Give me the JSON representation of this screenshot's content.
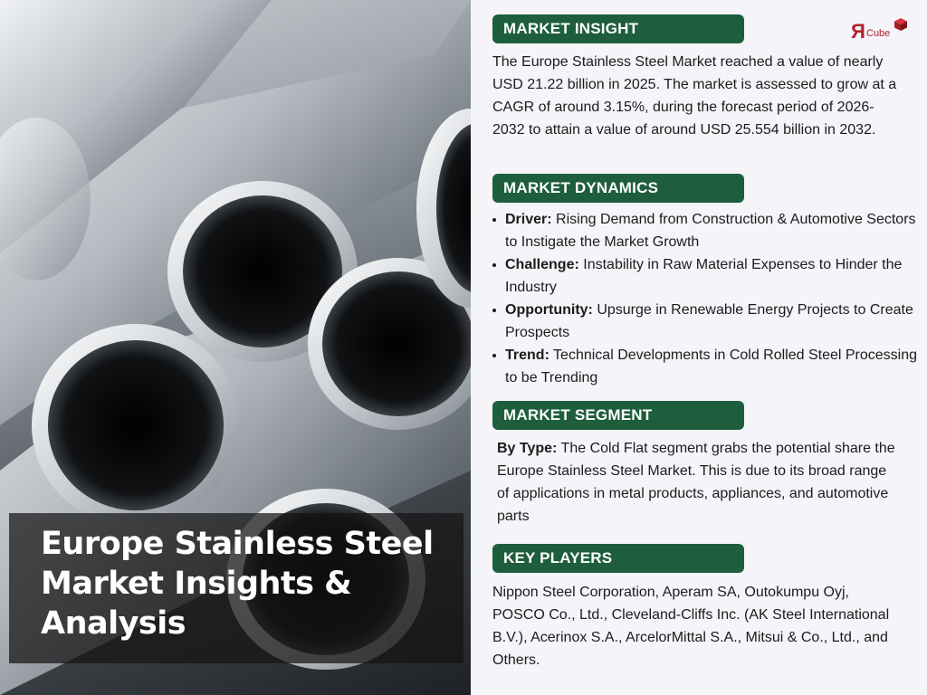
{
  "title": "Europe Stainless Steel Market Insights & Analysis",
  "logo": {
    "mark": "R",
    "text": "Cube",
    "icon": "cube-icon",
    "color": "#b3202a"
  },
  "accent_color": "#1e5e3d",
  "sections": {
    "insight": {
      "header": "MARKET INSIGHT",
      "text": "The Europe Stainless Steel Market reached a value of nearly USD 21.22 billion in 2025. The market is assessed to grow at a CAGR of around 3.15%, during the forecast period of 2026-2032 to attain a value of around USD 25.554 billion in 2032."
    },
    "dynamics": {
      "header": "MARKET DYNAMICS",
      "items": [
        {
          "label": "Driver:",
          "text": "Rising Demand from Construction & Automotive Sectors to Instigate the Market Growth"
        },
        {
          "label": "Challenge:",
          "text": "Instability in Raw Material Expenses to Hinder the Industry"
        },
        {
          "label": "Opportunity:",
          "text": "Upsurge in Renewable Energy Projects to Create Prospects"
        },
        {
          "label": "Trend:",
          "text": "Technical Developments in Cold Rolled Steel Processing to be Trending"
        }
      ]
    },
    "segment": {
      "header": "MARKET SEGMENT",
      "label": "By Type:",
      "text": "The Cold Flat segment grabs the potential share the Europe Stainless Steel Market. This is due to its broad range of applications in metal products, appliances, and automotive parts"
    },
    "players": {
      "header": "KEY PLAYERS",
      "text": "Nippon Steel Corporation, Aperam SA, Outokumpu Oyj, POSCO Co., Ltd., Cleveland-Cliffs Inc. (AK Steel International B.V.), Acerinox S.A., ArcelorMittal S.A., Mitsui & Co., Ltd., and Others."
    }
  }
}
